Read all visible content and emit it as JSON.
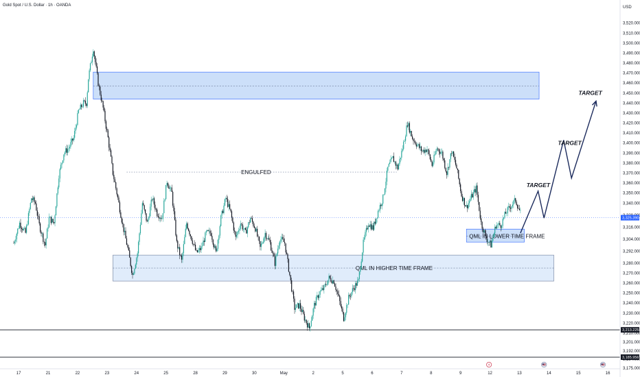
{
  "header": {
    "symbol_title": "Gold Spot / U.S. Dollar · 1h · OANDA",
    "currency": "USD"
  },
  "colors": {
    "up": "#26a69a",
    "down": "#131722",
    "zone_fill": "#bbd4f7",
    "zone_stroke": "#2962ff",
    "current_price": "#2962ff",
    "arrow": "#1b2a5c"
  },
  "chart_data": {
    "type": "candlestick",
    "y_axis": {
      "ylim": [
        3175,
        3528
      ],
      "ticks": [
        3520,
        3510,
        3500,
        3490,
        3480,
        3470,
        3460,
        3450,
        3440,
        3430,
        3420,
        3410,
        3400,
        3390,
        3380,
        3370,
        3360,
        3350,
        3340,
        3328,
        3316,
        3304,
        3292,
        3280,
        3270,
        3260,
        3250,
        3240,
        3230,
        3220,
        3210,
        3201,
        3192,
        3184,
        3175
      ],
      "tick_labels": [
        "3,520.000",
        "3,510.000",
        "3,500.000",
        "3,490.000",
        "3,480.000",
        "3,470.000",
        "3,460.000",
        "3,450.000",
        "3,440.000",
        "3,430.000",
        "3,420.000",
        "3,410.000",
        "3,400.000",
        "3,390.000",
        "3,380.000",
        "3,370.000",
        "3,360.000",
        "3,350.000",
        "3,340.000",
        "3,328.000",
        "3,316.000",
        "3,304.000",
        "3,292.000",
        "3,280.000",
        "3,270.000",
        "3,260.000",
        "3,250.000",
        "3,240.000",
        "3,230.000",
        "3,220.000",
        "3,210.000",
        "3,201.000",
        "3,192.000",
        "3,184.000",
        "3,175.000"
      ]
    },
    "x_axis": {
      "labels": [
        "17",
        "21",
        "22",
        "23",
        "24",
        "25",
        "28",
        "29",
        "30",
        "May",
        "2",
        "5",
        "6",
        "7",
        "8",
        "9",
        "12",
        "13",
        "14",
        "15",
        "16"
      ],
      "positions": [
        0.5,
        3.5,
        6.5,
        9.5,
        12.5,
        15.5,
        18.5,
        21.5,
        24.5,
        27.5,
        30.5,
        33.5,
        36.5,
        39.5,
        42.5,
        45.5,
        48.5,
        51.5,
        54.5,
        57.5,
        60.5
      ]
    },
    "path": [
      [
        0,
        3300
      ],
      [
        0.6,
        3320
      ],
      [
        1.2,
        3310
      ],
      [
        1.8,
        3345
      ],
      [
        2.2,
        3340
      ],
      [
        2.6,
        3318
      ],
      [
        3.2,
        3298
      ],
      [
        3.6,
        3325
      ],
      [
        4.1,
        3320
      ],
      [
        4.6,
        3368
      ],
      [
        5.1,
        3390
      ],
      [
        5.6,
        3395
      ],
      [
        6.1,
        3405
      ],
      [
        6.6,
        3432
      ],
      [
        7.1,
        3440
      ],
      [
        7.4,
        3440
      ],
      [
        7.6,
        3465
      ],
      [
        8.1,
        3495
      ],
      [
        8.6,
        3460
      ],
      [
        9.1,
        3435
      ],
      [
        9.6,
        3405
      ],
      [
        10.1,
        3370
      ],
      [
        10.6,
        3345
      ],
      [
        11.1,
        3318
      ],
      [
        11.6,
        3295
      ],
      [
        12.1,
        3268
      ],
      [
        12.6,
        3290
      ],
      [
        13.1,
        3340
      ],
      [
        13.6,
        3320
      ],
      [
        14.1,
        3345
      ],
      [
        14.6,
        3330
      ],
      [
        15.1,
        3325
      ],
      [
        15.6,
        3362
      ],
      [
        16.1,
        3350
      ],
      [
        16.6,
        3300
      ],
      [
        17.1,
        3282
      ],
      [
        17.6,
        3320
      ],
      [
        18.1,
        3305
      ],
      [
        18.6,
        3290
      ],
      [
        19.1,
        3295
      ],
      [
        19.6,
        3310
      ],
      [
        20.1,
        3310
      ],
      [
        20.6,
        3290
      ],
      [
        21.1,
        3325
      ],
      [
        21.6,
        3345
      ],
      [
        22.1,
        3330
      ],
      [
        22.6,
        3305
      ],
      [
        23.1,
        3320
      ],
      [
        23.6,
        3310
      ],
      [
        24.1,
        3325
      ],
      [
        24.6,
        3315
      ],
      [
        25.1,
        3295
      ],
      [
        25.6,
        3310
      ],
      [
        26.1,
        3300
      ],
      [
        26.6,
        3280
      ],
      [
        27.1,
        3305
      ],
      [
        27.6,
        3300
      ],
      [
        28.1,
        3268
      ],
      [
        28.6,
        3235
      ],
      [
        29.1,
        3238
      ],
      [
        29.6,
        3225
      ],
      [
        30.1,
        3215
      ],
      [
        30.6,
        3238
      ],
      [
        31.1,
        3250
      ],
      [
        31.6,
        3255
      ],
      [
        32.1,
        3265
      ],
      [
        32.6,
        3262
      ],
      [
        33.1,
        3245
      ],
      [
        33.6,
        3225
      ],
      [
        34.1,
        3245
      ],
      [
        34.6,
        3255
      ],
      [
        35.1,
        3262
      ],
      [
        35.6,
        3300
      ],
      [
        36.1,
        3320
      ],
      [
        36.6,
        3315
      ],
      [
        37.1,
        3332
      ],
      [
        37.6,
        3345
      ],
      [
        38.1,
        3375
      ],
      [
        38.6,
        3385
      ],
      [
        39.1,
        3375
      ],
      [
        39.6,
        3395
      ],
      [
        40.1,
        3420
      ],
      [
        40.6,
        3405
      ],
      [
        41.1,
        3398
      ],
      [
        41.6,
        3392
      ],
      [
        42.1,
        3394
      ],
      [
        42.6,
        3378
      ],
      [
        43.1,
        3395
      ],
      [
        43.6,
        3390
      ],
      [
        44.1,
        3370
      ],
      [
        44.6,
        3392
      ],
      [
        45.1,
        3375
      ],
      [
        45.6,
        3348
      ],
      [
        46.1,
        3336
      ],
      [
        46.6,
        3346
      ],
      [
        47.1,
        3355
      ],
      [
        47.6,
        3320
      ],
      [
        48.1,
        3305
      ],
      [
        48.6,
        3298
      ],
      [
        49.1,
        3318
      ],
      [
        49.6,
        3318
      ],
      [
        50.1,
        3330
      ],
      [
        50.6,
        3337
      ],
      [
        51.1,
        3343
      ],
      [
        51.6,
        3330
      ]
    ],
    "current_price": 3325.39,
    "current_price_label": "3,325.390",
    "horizontal_levels": [
      {
        "label": "3,213.225",
        "value": 3213.225
      },
      {
        "label": "3,185.956",
        "value": 3185.956
      }
    ],
    "zones": [
      {
        "name": "supply-zone",
        "x0": 8.1,
        "x1": 53.5,
        "y_top": 3471,
        "y_bottom": 3444,
        "mid": 3457
      },
      {
        "name": "qml-higher-time-frame",
        "label": "QML IN HIGHER TIME FRAME",
        "x0": 10.1,
        "x1": 55.0,
        "y_top": 3288,
        "y_bottom": 3262,
        "mid": 3275
      },
      {
        "name": "qml-lower-time-frame",
        "label": "QML IN LOWER TIME FRAME",
        "x0": 46.1,
        "x1": 52.0,
        "y_top": 3314,
        "y_bottom": 3301,
        "mid": 3307
      }
    ],
    "engulfed": {
      "label": "ENGULFED",
      "value": 3371,
      "x0": 11.5,
      "x1": 39.0
    },
    "projection": [
      [
        51.6,
        3310
      ],
      [
        53.4,
        3352
      ],
      [
        54.0,
        3325
      ],
      [
        56.0,
        3403
      ],
      [
        56.8,
        3365
      ],
      [
        59.3,
        3442
      ]
    ],
    "targets": [
      {
        "label": "TARGET",
        "x": 53.2,
        "y": 3356
      },
      {
        "label": "TARGET",
        "x": 56.4,
        "y": 3398
      },
      {
        "label": "TARGET",
        "x": 58.5,
        "y": 3448
      }
    ],
    "bottom_icons": [
      {
        "name": "flash-icon",
        "x": 48.4
      },
      {
        "name": "flag-icon",
        "x": 54.0
      },
      {
        "name": "flag-icon",
        "x": 60.0
      }
    ],
    "legend": "none",
    "grid": false
  }
}
